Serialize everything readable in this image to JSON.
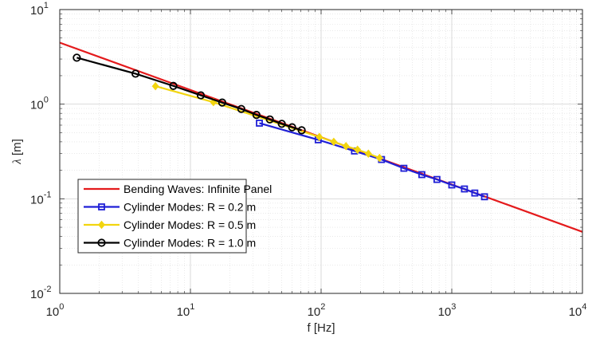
{
  "chart_data": {
    "type": "line",
    "xscale": "log",
    "yscale": "log",
    "xlim": [
      1,
      10000
    ],
    "ylim": [
      0.01,
      10
    ],
    "grid": true,
    "xlabel": "f [Hz]",
    "ylabel_symbol": "λ",
    "ylabel_unit": " [m]",
    "legend_position": "lower-left",
    "xticks": [
      {
        "value": 1,
        "base": "10",
        "exp": "0"
      },
      {
        "value": 10,
        "base": "10",
        "exp": "1"
      },
      {
        "value": 100,
        "base": "10",
        "exp": "2"
      },
      {
        "value": 1000,
        "base": "10",
        "exp": "3"
      },
      {
        "value": 10000,
        "base": "10",
        "exp": "4"
      }
    ],
    "yticks": [
      {
        "value": 0.01,
        "base": "10",
        "exp": "-2"
      },
      {
        "value": 0.1,
        "base": "10",
        "exp": "-1"
      },
      {
        "value": 1,
        "base": "10",
        "exp": "0"
      },
      {
        "value": 10,
        "base": "10",
        "exp": "1"
      }
    ],
    "series": [
      {
        "name": "Bending Waves: Infinite Panel",
        "color": "#e41a1c",
        "marker": "none",
        "x": [
          1,
          10000
        ],
        "y": [
          4.47,
          0.0447
        ]
      },
      {
        "name": "Cylinder Modes: R = 0.2 m",
        "color": "#1f1fd6",
        "marker": "square",
        "x": [
          33.7,
          95,
          180,
          290,
          430,
          590,
          770,
          1000,
          1250,
          1500,
          1780
        ],
        "y": [
          0.63,
          0.42,
          0.32,
          0.26,
          0.21,
          0.18,
          0.16,
          0.14,
          0.127,
          0.115,
          0.105
        ]
      },
      {
        "name": "Cylinder Modes: R = 0.5 m",
        "color": "#f2d50f",
        "marker": "diamond",
        "x": [
          5.4,
          15,
          97,
          125,
          155,
          190,
          230,
          280
        ],
        "y": [
          1.55,
          1.05,
          0.45,
          0.4,
          0.36,
          0.33,
          0.3,
          0.27
        ]
      },
      {
        "name": "Cylinder Modes: R = 1.0 m",
        "color": "#000000",
        "marker": "circle",
        "x": [
          1.35,
          3.8,
          7.4,
          12,
          17.5,
          24.5,
          32,
          40.5,
          50,
          60,
          71
        ],
        "y": [
          3.1,
          2.1,
          1.56,
          1.24,
          1.04,
          0.89,
          0.77,
          0.69,
          0.62,
          0.57,
          0.53
        ]
      }
    ]
  }
}
